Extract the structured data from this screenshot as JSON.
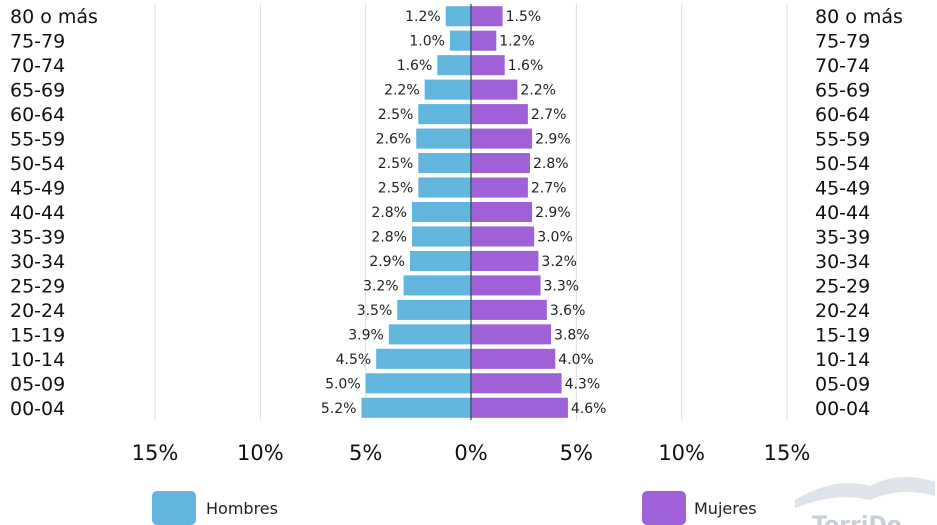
{
  "chart_data": {
    "type": "bar",
    "orientation": "horizontal-population-pyramid",
    "categories": [
      "80 o más",
      "75-79",
      "70-74",
      "65-69",
      "60-64",
      "55-59",
      "50-54",
      "45-49",
      "40-44",
      "35-39",
      "30-34",
      "25-29",
      "20-24",
      "15-19",
      "10-14",
      "05-09",
      "00-04"
    ],
    "series": [
      {
        "name": "Hombres",
        "color": "#62b6de",
        "side": "left",
        "values": [
          1.2,
          1.0,
          1.6,
          2.2,
          2.5,
          2.6,
          2.5,
          2.5,
          2.8,
          2.8,
          2.9,
          3.2,
          3.5,
          3.9,
          4.5,
          5.0,
          5.2
        ],
        "labels": [
          "1.2%",
          "1.0%",
          "1.6%",
          "2.2%",
          "2.5%",
          "2.6%",
          "2.5%",
          "2.5%",
          "2.8%",
          "2.8%",
          "2.9%",
          "3.2%",
          "3.5%",
          "3.9%",
          "4.5%",
          "5.0%",
          "5.2%"
        ]
      },
      {
        "name": "Mujeres",
        "color": "#a060d8",
        "side": "right",
        "values": [
          1.5,
          1.2,
          1.6,
          2.2,
          2.7,
          2.9,
          2.8,
          2.7,
          2.9,
          3.0,
          3.2,
          3.3,
          3.6,
          3.8,
          4.0,
          4.3,
          4.6
        ],
        "labels": [
          "1.5%",
          "1.2%",
          "1.6%",
          "2.2%",
          "2.7%",
          "2.9%",
          "2.8%",
          "2.7%",
          "2.9%",
          "3.0%",
          "3.2%",
          "3.3%",
          "3.6%",
          "3.8%",
          "4.0%",
          "4.3%",
          "4.6%"
        ]
      }
    ],
    "xlim": [
      -15,
      15
    ],
    "x_ticks": [
      "15%",
      "10%",
      "5%",
      "0%",
      "5%",
      "10%",
      "15%"
    ],
    "grid": true,
    "legend_position": "bottom"
  },
  "watermark": {
    "text": "TorriDo",
    "color": "#c9cfd6"
  }
}
